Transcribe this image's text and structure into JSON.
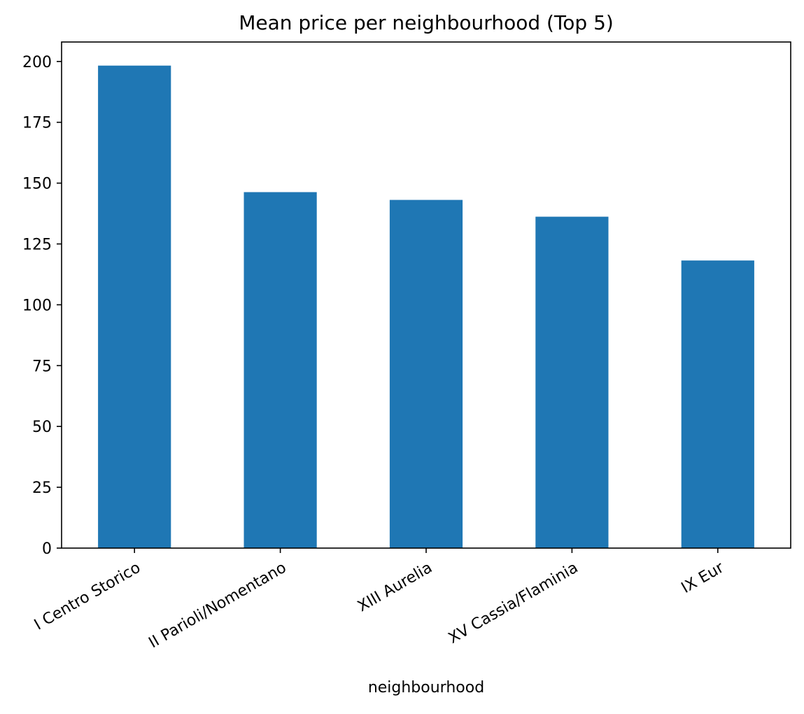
{
  "chart_data": {
    "type": "bar",
    "title": "Mean price per neighbourhood (Top 5)",
    "xlabel": "neighbourhood",
    "ylabel": "",
    "categories": [
      "I Centro Storico",
      "II Parioli/Nomentano",
      "XIII Aurelia",
      "XV Cassia/Flaminia",
      "IX Eur"
    ],
    "values": [
      198.3,
      146.3,
      143.1,
      136.2,
      118.2
    ],
    "ylim": [
      0,
      208
    ],
    "yticks": [
      0,
      25,
      50,
      75,
      100,
      125,
      150,
      175,
      200
    ],
    "ytick_labels": [
      "0",
      "25",
      "50",
      "75",
      "100",
      "125",
      "150",
      "175",
      "200"
    ],
    "xtick_rotation_deg": -30,
    "bar_color": "#1f77b4",
    "grid": false,
    "legend": "none"
  }
}
